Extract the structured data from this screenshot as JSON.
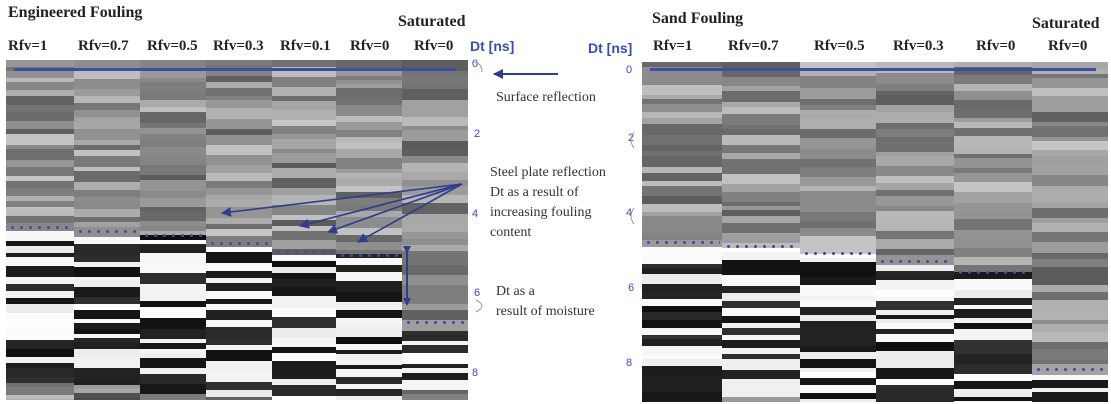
{
  "left": {
    "title": "Engineered Fouling",
    "saturated": "Saturated",
    "columns": [
      "Rfv=1",
      "Rfv=0.7",
      "Rfv=0.5",
      "Rfv=0.3",
      "Rfv=0.1",
      "Rfv=0",
      "Rfv=0"
    ],
    "axis_label": "Dt [ns]",
    "ticks": [
      "0",
      "2",
      "4",
      "6",
      "8"
    ]
  },
  "right": {
    "title": "Sand Fouling",
    "saturated": "Saturated",
    "columns": [
      "Rfv=1",
      "Rfv=0.7",
      "Rfv=0.5",
      "Rfv=0.3",
      "Rfv=0",
      "Rfv=0"
    ],
    "axis_label": "Dt [ns]",
    "ticks": [
      "0",
      "2",
      "4",
      "6",
      "8"
    ]
  },
  "annotations": {
    "surface": "Surface reflection",
    "steel1": "Steel plate reflection",
    "steel2": "Dt as a result of",
    "steel3": "increasing fouling",
    "steel4": "content",
    "moist1": "Dt as a",
    "moist2": "result of moisture"
  },
  "colors": {
    "marker": "#3b4ea8",
    "arrow": "#2f3d8f"
  },
  "chart_data": [
    {
      "type": "heatmap",
      "title": "Engineered Fouling",
      "columns": [
        "Rfv=1",
        "Rfv=0.7",
        "Rfv=0.5",
        "Rfv=0.3",
        "Rfv=0.1",
        "Rfv=0",
        "Rfv=0 (Saturated)"
      ],
      "ylabel": "Dt [ns]",
      "ylim": [
        0,
        9
      ],
      "steel_plate_reflection_ns": [
        3.9,
        4.0,
        4.1,
        4.3,
        4.5,
        4.6,
        6.3
      ]
    },
    {
      "type": "heatmap",
      "title": "Sand Fouling",
      "columns": [
        "Rfv=1",
        "Rfv=0.7",
        "Rfv=0.5",
        "Rfv=0.3",
        "Rfv=0",
        "Rfv=0 (Saturated)"
      ],
      "ylabel": "Dt [ns]",
      "ylim": [
        0,
        9
      ],
      "steel_plate_reflection_ns": [
        4.5,
        4.6,
        4.8,
        5.0,
        5.3,
        7.9
      ]
    }
  ]
}
